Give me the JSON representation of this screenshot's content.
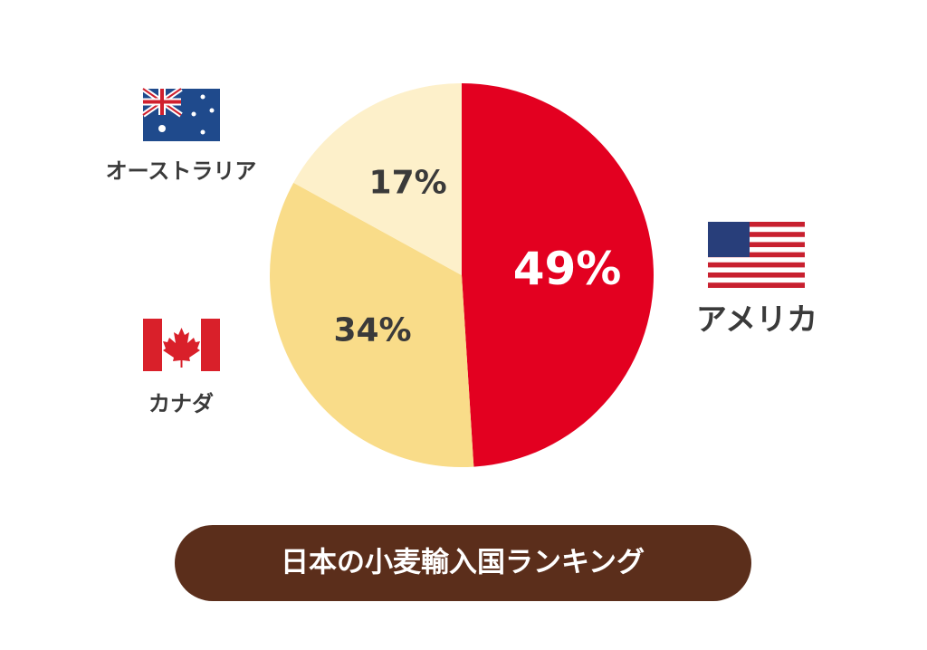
{
  "chart_data": {
    "type": "pie",
    "title": "日本の小麦輸入国ランキング",
    "categories": [
      "アメリカ",
      "カナダ",
      "オーストラリア"
    ],
    "values": [
      49,
      34,
      17
    ],
    "value_labels": [
      "49%",
      "34%",
      "17%"
    ],
    "colors": [
      "#e30020",
      "#f9dc89",
      "#fdf0ca"
    ]
  }
}
